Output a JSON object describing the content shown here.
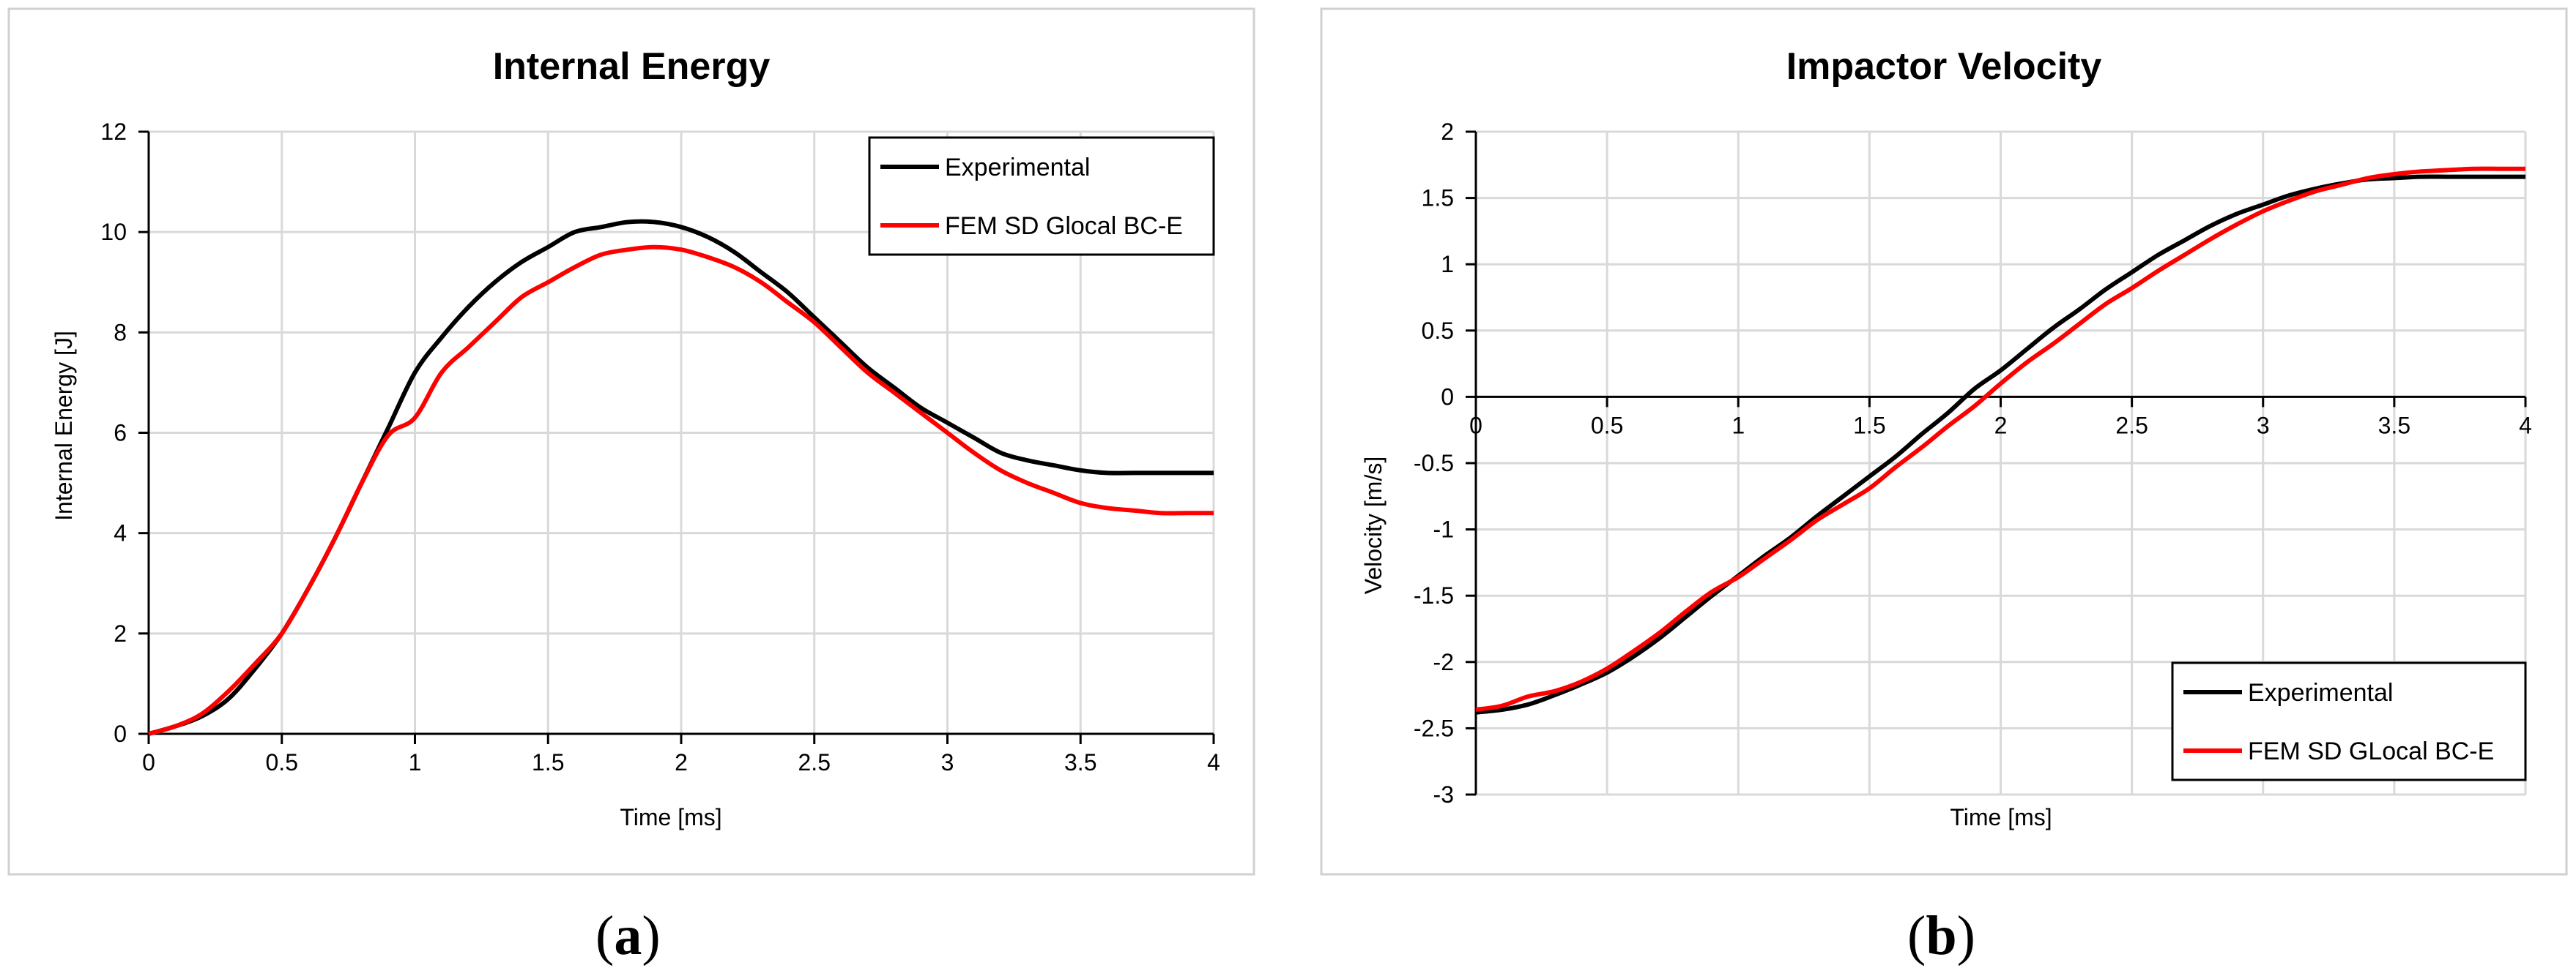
{
  "chart_data": [
    {
      "type": "line",
      "title": "Internal Energy",
      "xlabel": "Time [ms]",
      "ylabel": "Internal Energy [J]",
      "xlim": [
        0,
        4
      ],
      "ylim": [
        0,
        12
      ],
      "xticks": [
        "0",
        "0.5",
        "1",
        "1.5",
        "2",
        "2.5",
        "3",
        "3.5",
        "4"
      ],
      "yticks": [
        "0",
        "2",
        "4",
        "6",
        "8",
        "10",
        "12"
      ],
      "grid": true,
      "legend_position": "top-right",
      "series": [
        {
          "name": "Experimental",
          "color": "#000000",
          "x": [
            0,
            0.1,
            0.2,
            0.3,
            0.4,
            0.5,
            0.6,
            0.7,
            0.8,
            0.9,
            1.0,
            1.1,
            1.2,
            1.3,
            1.4,
            1.5,
            1.6,
            1.7,
            1.8,
            1.9,
            2.0,
            2.1,
            2.2,
            2.3,
            2.4,
            2.5,
            2.6,
            2.7,
            2.8,
            2.9,
            3.0,
            3.1,
            3.2,
            3.3,
            3.4,
            3.5,
            3.6,
            3.7,
            3.8,
            3.9,
            4.0
          ],
          "y": [
            0,
            0.15,
            0.35,
            0.7,
            1.3,
            2.0,
            2.9,
            3.9,
            5.0,
            6.1,
            7.2,
            7.9,
            8.5,
            9.0,
            9.4,
            9.7,
            10.0,
            10.1,
            10.2,
            10.2,
            10.1,
            9.9,
            9.6,
            9.2,
            8.8,
            8.3,
            7.8,
            7.3,
            6.9,
            6.5,
            6.2,
            5.9,
            5.6,
            5.45,
            5.35,
            5.25,
            5.2,
            5.2,
            5.2,
            5.2,
            5.2
          ]
        },
        {
          "name": "FEM SD Glocal BC-E",
          "color": "#ff0000",
          "x": [
            0,
            0.1,
            0.2,
            0.3,
            0.4,
            0.5,
            0.6,
            0.7,
            0.8,
            0.9,
            1.0,
            1.1,
            1.2,
            1.3,
            1.4,
            1.5,
            1.6,
            1.7,
            1.8,
            1.9,
            2.0,
            2.1,
            2.2,
            2.3,
            2.4,
            2.5,
            2.6,
            2.7,
            2.8,
            2.9,
            3.0,
            3.1,
            3.2,
            3.3,
            3.4,
            3.5,
            3.6,
            3.7,
            3.8,
            3.9,
            4.0
          ],
          "y": [
            0,
            0.15,
            0.4,
            0.85,
            1.4,
            2.0,
            2.9,
            3.9,
            5.0,
            5.95,
            6.3,
            7.2,
            7.7,
            8.2,
            8.7,
            9.0,
            9.3,
            9.55,
            9.65,
            9.7,
            9.65,
            9.5,
            9.3,
            9.0,
            8.6,
            8.2,
            7.7,
            7.2,
            6.8,
            6.4,
            6.0,
            5.6,
            5.25,
            5.0,
            4.8,
            4.6,
            4.5,
            4.45,
            4.4,
            4.4,
            4.4
          ]
        }
      ]
    },
    {
      "type": "line",
      "title": "Impactor Velocity",
      "xlabel": "Time [ms]",
      "ylabel": "Velocity [m/s]",
      "xlim": [
        0,
        4
      ],
      "ylim": [
        -3,
        2
      ],
      "xticks": [
        "0",
        "0.5",
        "1",
        "1.5",
        "2",
        "2.5",
        "3",
        "3.5",
        "4"
      ],
      "yticks": [
        "-3",
        "-2.5",
        "-2",
        "-1.5",
        "-1",
        "-0.5",
        "0",
        "0.5",
        "1",
        "1.5",
        "2"
      ],
      "grid": true,
      "legend_position": "bottom-right",
      "series": [
        {
          "name": "Experimental",
          "color": "#000000",
          "x": [
            0,
            0.1,
            0.2,
            0.3,
            0.4,
            0.5,
            0.6,
            0.7,
            0.8,
            0.9,
            1.0,
            1.1,
            1.2,
            1.3,
            1.4,
            1.5,
            1.6,
            1.7,
            1.8,
            1.9,
            2.0,
            2.1,
            2.2,
            2.3,
            2.4,
            2.5,
            2.6,
            2.7,
            2.8,
            2.9,
            3.0,
            3.1,
            3.2,
            3.3,
            3.4,
            3.5,
            3.6,
            3.7,
            3.8,
            3.9,
            4.0
          ],
          "y": [
            -2.38,
            -2.36,
            -2.32,
            -2.25,
            -2.17,
            -2.08,
            -1.96,
            -1.82,
            -1.66,
            -1.5,
            -1.35,
            -1.2,
            -1.06,
            -0.9,
            -0.75,
            -0.6,
            -0.45,
            -0.28,
            -0.12,
            0.06,
            0.2,
            0.36,
            0.52,
            0.66,
            0.81,
            0.94,
            1.07,
            1.18,
            1.29,
            1.38,
            1.45,
            1.52,
            1.57,
            1.61,
            1.64,
            1.65,
            1.66,
            1.66,
            1.66,
            1.66,
            1.66
          ]
        },
        {
          "name": "FEM SD GLocal BC-E",
          "color": "#ff0000",
          "x": [
            0,
            0.1,
            0.2,
            0.3,
            0.4,
            0.5,
            0.6,
            0.7,
            0.8,
            0.9,
            1.0,
            1.1,
            1.2,
            1.3,
            1.4,
            1.5,
            1.6,
            1.7,
            1.8,
            1.9,
            2.0,
            2.1,
            2.2,
            2.3,
            2.4,
            2.5,
            2.6,
            2.7,
            2.8,
            2.9,
            3.0,
            3.1,
            3.2,
            3.3,
            3.4,
            3.5,
            3.6,
            3.7,
            3.8,
            3.9,
            4.0
          ],
          "y": [
            -2.36,
            -2.33,
            -2.26,
            -2.22,
            -2.15,
            -2.05,
            -1.92,
            -1.78,
            -1.62,
            -1.47,
            -1.36,
            -1.22,
            -1.08,
            -0.93,
            -0.81,
            -0.69,
            -0.53,
            -0.38,
            -0.22,
            -0.07,
            0.1,
            0.26,
            0.4,
            0.55,
            0.7,
            0.82,
            0.95,
            1.07,
            1.19,
            1.3,
            1.4,
            1.48,
            1.55,
            1.6,
            1.65,
            1.68,
            1.7,
            1.71,
            1.72,
            1.72,
            1.72
          ]
        }
      ]
    }
  ],
  "captions": [
    {
      "open": "(",
      "letter": "a",
      "close": ")"
    },
    {
      "open": "(",
      "letter": "b",
      "close": ")"
    }
  ]
}
